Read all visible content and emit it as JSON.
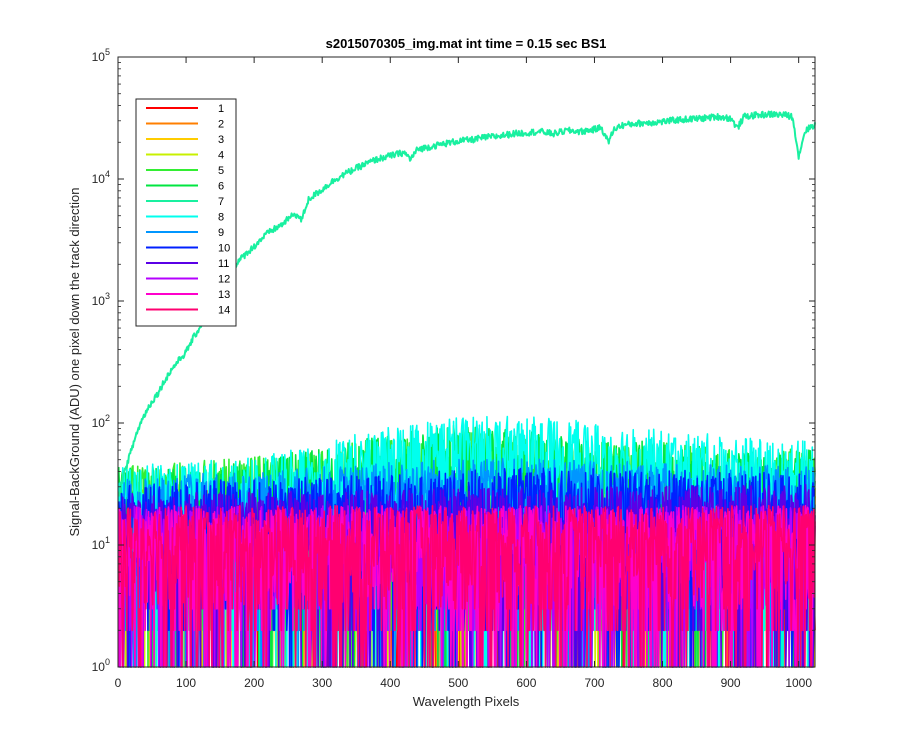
{
  "chart_data": {
    "type": "line",
    "title": "s2015070305_img.mat int time = 0.15 sec   BS1",
    "xlabel": "Wavelength Pixels",
    "ylabel": "Signal-BackGround (ADU) one pixel down the track direction",
    "xlim": [
      0,
      1024
    ],
    "ylim": [
      1,
      100000
    ],
    "yscale": "log",
    "x_ticks": [
      0,
      100,
      200,
      300,
      400,
      500,
      600,
      700,
      800,
      900,
      1000
    ],
    "x_tick_labels": [
      "0",
      "100",
      "200",
      "300",
      "400",
      "500",
      "600",
      "700",
      "800",
      "900",
      "1000"
    ],
    "y_ticks": [
      1,
      10,
      100,
      1000,
      10000,
      100000
    ],
    "y_tick_labels": [
      {
        "base": "10",
        "exp": "0"
      },
      {
        "base": "10",
        "exp": "1"
      },
      {
        "base": "10",
        "exp": "2"
      },
      {
        "base": "10",
        "exp": "3"
      },
      {
        "base": "10",
        "exp": "4"
      },
      {
        "base": "10",
        "exp": "5"
      }
    ],
    "grid": false,
    "legend_position": "top-left",
    "series": [
      {
        "name": "1",
        "color": "#ff0000",
        "kind": "noise",
        "envelope": [
          [
            0,
            15
          ],
          [
            1024,
            15
          ]
        ]
      },
      {
        "name": "2",
        "color": "#ff7f00",
        "kind": "noise",
        "envelope": [
          [
            0,
            15
          ],
          [
            1024,
            15
          ]
        ]
      },
      {
        "name": "3",
        "color": "#ffcc00",
        "kind": "noise",
        "envelope": [
          [
            0,
            18
          ],
          [
            1024,
            18
          ]
        ]
      },
      {
        "name": "4",
        "color": "#c8f000",
        "kind": "noise",
        "envelope": [
          [
            0,
            20
          ],
          [
            1024,
            20
          ]
        ]
      },
      {
        "name": "5",
        "color": "#33ee33",
        "kind": "noise",
        "envelope": [
          [
            0,
            25
          ],
          [
            200,
            30
          ],
          [
            300,
            35
          ],
          [
            400,
            45
          ],
          [
            500,
            50
          ],
          [
            600,
            45
          ],
          [
            700,
            40
          ],
          [
            800,
            40
          ],
          [
            900,
            35
          ],
          [
            1024,
            35
          ]
        ]
      },
      {
        "name": "6",
        "color": "#00e640",
        "kind": "noise",
        "envelope": [
          [
            0,
            25
          ],
          [
            200,
            28
          ],
          [
            300,
            35
          ],
          [
            400,
            48
          ],
          [
            500,
            55
          ],
          [
            600,
            50
          ],
          [
            700,
            42
          ],
          [
            800,
            40
          ],
          [
            900,
            35
          ],
          [
            1024,
            35
          ]
        ]
      },
      {
        "name": "7",
        "color": "#19f0a0",
        "kind": "signal",
        "points": [
          [
            0,
            25
          ],
          [
            10,
            40
          ],
          [
            20,
            60
          ],
          [
            30,
            90
          ],
          [
            40,
            120
          ],
          [
            50,
            150
          ],
          [
            60,
            180
          ],
          [
            80,
            280
          ],
          [
            100,
            380
          ],
          [
            120,
            600
          ],
          [
            140,
            900
          ],
          [
            160,
            1300
          ],
          [
            170,
            1900
          ],
          [
            180,
            2200
          ],
          [
            200,
            2800
          ],
          [
            220,
            3600
          ],
          [
            240,
            4200
          ],
          [
            260,
            5200
          ],
          [
            270,
            4600
          ],
          [
            280,
            6800
          ],
          [
            300,
            8200
          ],
          [
            320,
            10000
          ],
          [
            340,
            11500
          ],
          [
            360,
            13000
          ],
          [
            380,
            14500
          ],
          [
            400,
            15500
          ],
          [
            420,
            16500
          ],
          [
            430,
            14500
          ],
          [
            440,
            17500
          ],
          [
            460,
            18500
          ],
          [
            480,
            19500
          ],
          [
            500,
            20500
          ],
          [
            520,
            21000
          ],
          [
            540,
            22000
          ],
          [
            560,
            22500
          ],
          [
            580,
            23500
          ],
          [
            600,
            24000
          ],
          [
            620,
            24500
          ],
          [
            640,
            23500
          ],
          [
            660,
            25000
          ],
          [
            680,
            24500
          ],
          [
            700,
            25500
          ],
          [
            710,
            26500
          ],
          [
            720,
            20000
          ],
          [
            730,
            26000
          ],
          [
            740,
            27500
          ],
          [
            760,
            28500
          ],
          [
            780,
            29000
          ],
          [
            800,
            29500
          ],
          [
            820,
            30500
          ],
          [
            840,
            31000
          ],
          [
            860,
            31500
          ],
          [
            880,
            32500
          ],
          [
            900,
            31500
          ],
          [
            910,
            26000
          ],
          [
            920,
            32500
          ],
          [
            940,
            33500
          ],
          [
            960,
            34000
          ],
          [
            980,
            33500
          ],
          [
            990,
            32500
          ],
          [
            1000,
            15000
          ],
          [
            1010,
            25000
          ],
          [
            1024,
            28000
          ]
        ]
      },
      {
        "name": "8",
        "color": "#00ffee",
        "kind": "noise",
        "envelope": [
          [
            0,
            25
          ],
          [
            200,
            30
          ],
          [
            300,
            38
          ],
          [
            400,
            55
          ],
          [
            500,
            65
          ],
          [
            600,
            65
          ],
          [
            700,
            58
          ],
          [
            800,
            50
          ],
          [
            900,
            45
          ],
          [
            1024,
            40
          ]
        ]
      },
      {
        "name": "9",
        "color": "#0096ff",
        "kind": "noise",
        "envelope": [
          [
            0,
            20
          ],
          [
            300,
            25
          ],
          [
            500,
            30
          ],
          [
            700,
            28
          ],
          [
            1024,
            25
          ]
        ]
      },
      {
        "name": "10",
        "color": "#0020ff",
        "kind": "noise",
        "envelope": [
          [
            0,
            18
          ],
          [
            400,
            22
          ],
          [
            600,
            25
          ],
          [
            1024,
            22
          ]
        ]
      },
      {
        "name": "11",
        "color": "#5a00e6",
        "kind": "noise",
        "envelope": [
          [
            0,
            15
          ],
          [
            1024,
            18
          ]
        ]
      },
      {
        "name": "12",
        "color": "#b400ff",
        "kind": "noise",
        "envelope": [
          [
            0,
            12
          ],
          [
            1024,
            12
          ]
        ]
      },
      {
        "name": "13",
        "color": "#ff00cc",
        "kind": "noise",
        "envelope": [
          [
            0,
            12
          ],
          [
            1024,
            12
          ]
        ]
      },
      {
        "name": "14",
        "color": "#ff0070",
        "kind": "noise",
        "envelope": [
          [
            0,
            12
          ],
          [
            1024,
            12
          ]
        ]
      }
    ]
  }
}
